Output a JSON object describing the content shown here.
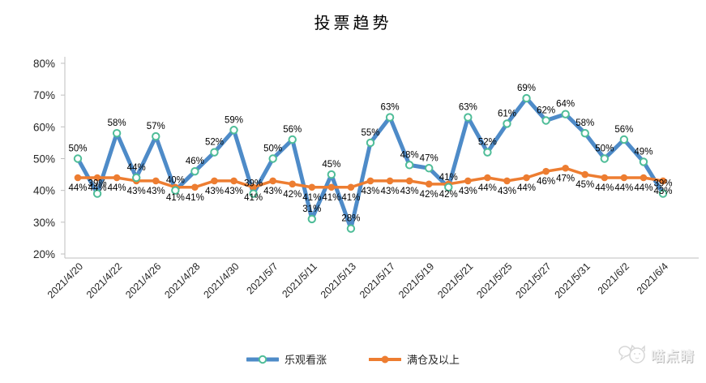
{
  "chart_data": {
    "type": "line",
    "title": "投票趋势",
    "n_points": 31,
    "x_tick_labels": [
      "2021/4/20",
      "2021/4/22",
      "2021/4/26",
      "2021/4/28",
      "2021/4/30",
      "2021/5/7",
      "2021/5/11",
      "2021/5/13",
      "2021/5/17",
      "2021/5/19",
      "2021/5/21",
      "2021/5/25",
      "2021/5/27",
      "2021/5/31",
      "2021/6/2",
      "2021/6/4"
    ],
    "x_label_every_n_points": 2,
    "series": [
      {
        "name": "乐观看涨",
        "color": "#4E8BC8",
        "marker": "open-circle",
        "marker_ring_color": "#4FBD98",
        "values": [
          50,
          39,
          58,
          44,
          57,
          40,
          46,
          52,
          59,
          39,
          50,
          56,
          31,
          45,
          28,
          55,
          63,
          48,
          47,
          41,
          63,
          52,
          61,
          69,
          62,
          64,
          58,
          50,
          56,
          49,
          39
        ]
      },
      {
        "name": "满仓及以上",
        "color": "#ED7D31",
        "marker": "filled-circle",
        "values": [
          44,
          44,
          44,
          43,
          43,
          41,
          41,
          43,
          43,
          41,
          43,
          42,
          41,
          41,
          41,
          43,
          43,
          43,
          42,
          42,
          43,
          44,
          43,
          44,
          46,
          47,
          45,
          44,
          44,
          44,
          43
        ]
      }
    ],
    "ylim": [
      20,
      80
    ],
    "y_tick_labels": [
      "20%",
      "30%",
      "40%",
      "50%",
      "60%",
      "70%",
      "80%"
    ],
    "value_suffix": "%",
    "grid": false,
    "legend_position": "bottom",
    "axis_color": "#bfbfbf",
    "label_color": "#000000"
  },
  "watermark": {
    "text": "喵点睛",
    "icon": "cat-with-speech-bubble"
  }
}
